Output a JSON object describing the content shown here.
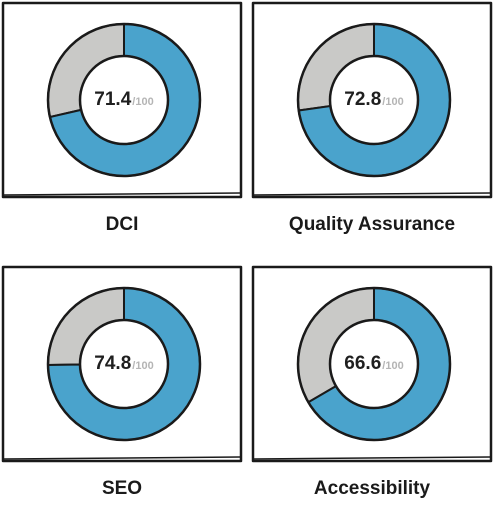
{
  "colors": {
    "score_fill": "#4aa3cc",
    "remaining_fill": "#c9c9c7",
    "outline": "#1a1a1a",
    "max_text": "#b5b5b5"
  },
  "cards": [
    {
      "label": "DCI",
      "score": "71.4",
      "score_value": 71.4,
      "max": "/100"
    },
    {
      "label": "Quality Assurance",
      "score": "72.8",
      "score_value": 72.8,
      "max": "/100"
    },
    {
      "label": "SEO",
      "score": "74.8",
      "score_value": 74.8,
      "max": "/100"
    },
    {
      "label": "Accessibility",
      "score": "66.6",
      "score_value": 66.6,
      "max": "/100"
    }
  ]
}
